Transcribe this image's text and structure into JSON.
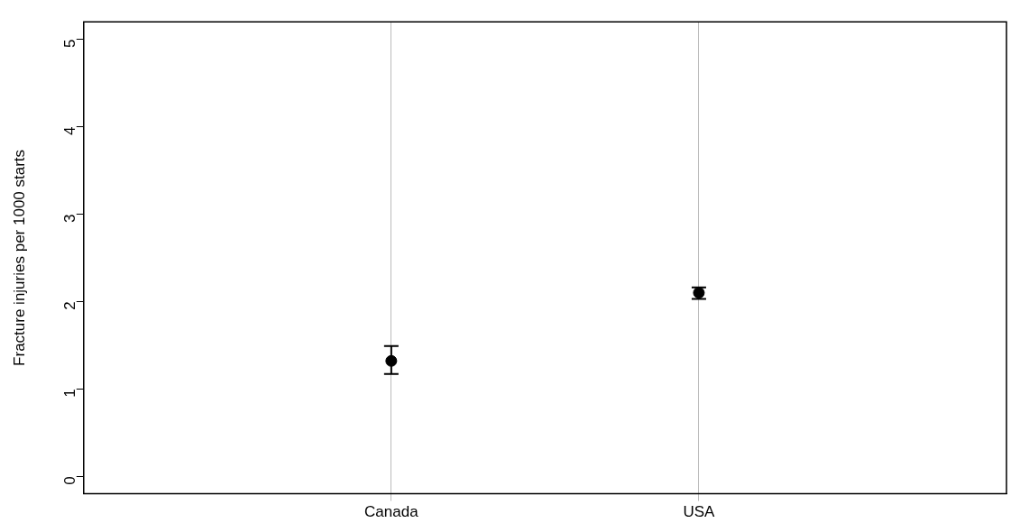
{
  "chart_data": {
    "type": "scatter",
    "ylabel": "Fracture injuries per 1000 starts",
    "categories": [
      "Canada",
      "USA"
    ],
    "values": [
      1.32,
      2.1
    ],
    "errors": [
      [
        1.17,
        1.49
      ],
      [
        2.03,
        2.16
      ]
    ],
    "color": "#000000",
    "marker": "circle",
    "ylim": [
      -0.2,
      5.2
    ],
    "yticks": [
      0,
      1,
      2,
      3,
      4,
      5
    ],
    "grid": "x",
    "legend": false
  }
}
